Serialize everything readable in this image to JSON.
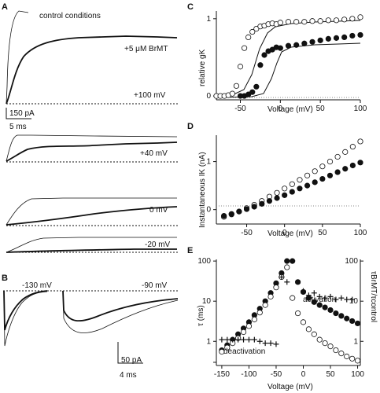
{
  "panels": {
    "A": "A",
    "B": "B",
    "C": "C",
    "D": "D",
    "E": "E"
  },
  "panel_a": {
    "legend_control": "control conditions",
    "legend_brmt": "+5 μM BrMT",
    "v_labels": [
      "+100 mV",
      "+40 mV",
      "0 mV",
      "-20 mV"
    ],
    "scale_current": "150 pA",
    "scale_time": "5 ms"
  },
  "panel_b": {
    "v_labels": [
      "-130 mV",
      "-90 mV"
    ],
    "scale_current": "50 pA",
    "scale_time": "4 ms"
  },
  "chart_data": [
    {
      "id": "C",
      "type": "scatter",
      "xlabel": "Voltage (mV)",
      "ylabel": "relative gK",
      "xlim": [
        -80,
        100
      ],
      "ylim": [
        -0.05,
        1.1
      ],
      "xticks": [
        -50,
        0,
        50,
        100
      ],
      "yticks": [
        0,
        1
      ],
      "series": [
        {
          "marker": "open",
          "x": [
            -80,
            -75,
            -70,
            -65,
            -60,
            -55,
            -50,
            -45,
            -40,
            -35,
            -30,
            -25,
            -20,
            -15,
            -10,
            -5,
            0,
            10,
            20,
            30,
            40,
            50,
            60,
            70,
            80,
            90,
            100
          ],
          "y": [
            0.0,
            0.0,
            0.0,
            0.01,
            0.03,
            0.13,
            0.38,
            0.62,
            0.76,
            0.83,
            0.87,
            0.9,
            0.91,
            0.93,
            0.94,
            0.93,
            0.95,
            0.96,
            0.96,
            0.96,
            0.97,
            0.97,
            0.98,
            0.98,
            0.99,
            1.0,
            1.02
          ]
        },
        {
          "marker": "filled",
          "x": [
            -50,
            -45,
            -40,
            -35,
            -30,
            -25,
            -20,
            -15,
            -10,
            -5,
            0,
            10,
            20,
            30,
            40,
            50,
            60,
            70,
            80,
            90,
            100
          ],
          "y": [
            0.0,
            0.0,
            0.02,
            0.05,
            0.12,
            0.4,
            0.53,
            0.58,
            0.6,
            0.63,
            0.62,
            0.65,
            0.66,
            0.68,
            0.7,
            0.72,
            0.74,
            0.75,
            0.76,
            0.78,
            0.79
          ]
        }
      ]
    },
    {
      "id": "D",
      "type": "scatter",
      "xlabel": "Voltage (mV)",
      "ylabel": "Instantaneous IK (nA)",
      "xlim": [
        -90,
        100
      ],
      "ylim": [
        -0.3,
        1.55
      ],
      "xticks": [
        -50,
        0,
        50,
        100
      ],
      "yticks": [
        0,
        1
      ],
      "series": [
        {
          "marker": "open",
          "x": [
            -80,
            -70,
            -60,
            -50,
            -40,
            -30,
            -20,
            -10,
            0,
            10,
            20,
            30,
            40,
            50,
            60,
            70,
            80,
            90,
            100
          ],
          "y": [
            -0.15,
            -0.1,
            -0.04,
            0.03,
            0.1,
            0.18,
            0.27,
            0.35,
            0.44,
            0.53,
            0.62,
            0.71,
            0.8,
            0.9,
            1.0,
            1.1,
            1.2,
            1.31,
            1.42
          ]
        },
        {
          "marker": "filled",
          "x": [
            -80,
            -70,
            -60,
            -50,
            -40,
            -30,
            -20,
            -10,
            0,
            10,
            20,
            30,
            40,
            50,
            60,
            70,
            80,
            90,
            100
          ],
          "y": [
            -0.13,
            -0.09,
            -0.04,
            0.01,
            0.06,
            0.12,
            0.18,
            0.24,
            0.3,
            0.37,
            0.44,
            0.5,
            0.57,
            0.64,
            0.71,
            0.78,
            0.85,
            0.92,
            0.98
          ]
        }
      ]
    },
    {
      "id": "E",
      "type": "scatter",
      "xlabel": "Voltage (mV)",
      "ylabel": "τ (ms)",
      "ylabel_right": "τBrMT/τcontrol",
      "xlim": [
        -160,
        105
      ],
      "ylim": [
        0.25,
        110
      ],
      "yscale": "log",
      "xticks": [
        -150,
        -100,
        -50,
        0,
        50,
        100
      ],
      "yticks": [
        0.3,
        1,
        10,
        100
      ],
      "yticklabels": [
        "",
        "1",
        "10",
        "100"
      ],
      "yticks_right": [
        1,
        10,
        100
      ],
      "annotations": [
        "activation",
        "deactivation"
      ],
      "series": [
        {
          "marker": "filled",
          "x": [
            -150,
            -140,
            -130,
            -120,
            -110,
            -100,
            -90,
            -80,
            -70,
            -60,
            -50,
            -40,
            -30,
            -20,
            -10,
            0,
            10,
            20,
            30,
            40,
            50,
            60,
            70,
            80,
            90,
            100
          ],
          "y": [
            0.6,
            0.8,
            1.1,
            1.5,
            2.1,
            3.0,
            4.5,
            6.5,
            10,
            16,
            28,
            50,
            100,
            100,
            30,
            17,
            12,
            9.5,
            8,
            7,
            6,
            5,
            4.3,
            3.7,
            3.2,
            2.8
          ]
        },
        {
          "marker": "open",
          "x": [
            -150,
            -140,
            -130,
            -120,
            -110,
            -100,
            -90,
            -80,
            -70,
            -60,
            -50,
            -40,
            -30,
            -20,
            -10,
            0,
            10,
            20,
            30,
            40,
            50,
            60,
            70,
            80,
            90,
            100
          ],
          "y": [
            0.55,
            0.7,
            0.9,
            1.2,
            1.7,
            2.4,
            3.5,
            5.2,
            8,
            13,
            22,
            40,
            70,
            12,
            5,
            3,
            2,
            1.5,
            1.1,
            0.9,
            0.75,
            0.6,
            0.5,
            0.42,
            0.37,
            0.33
          ]
        },
        {
          "marker": "cross",
          "x": [
            -150,
            -140,
            -130,
            -120,
            -110,
            -100,
            -90,
            -80,
            -70,
            -60,
            -50,
            -40,
            -30,
            0,
            10,
            20,
            30,
            40,
            50,
            60,
            70,
            80,
            90
          ],
          "y": [
            1.1,
            1.1,
            1.1,
            1.1,
            1.1,
            1.1,
            1.1,
            1.0,
            0.9,
            0.9,
            0.85,
            40,
            30,
            18,
            14,
            16,
            13,
            12,
            13,
            11,
            12,
            11,
            11
          ]
        }
      ]
    }
  ]
}
